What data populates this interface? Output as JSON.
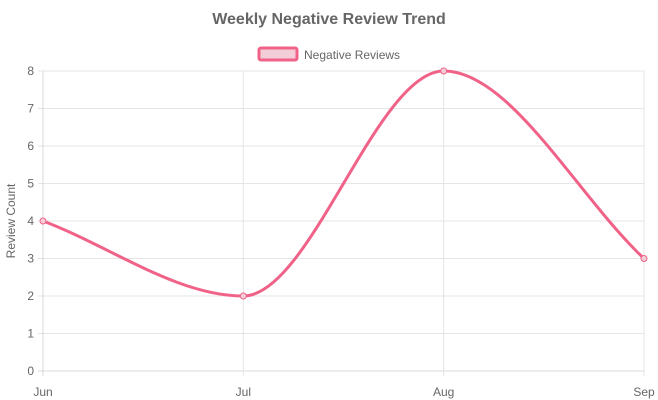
{
  "chart_data": {
    "type": "line",
    "title": "Weekly Negative Review Trend",
    "xlabel": "",
    "ylabel": "Review Count",
    "categories": [
      "Jun",
      "Jul",
      "Aug",
      "Sep"
    ],
    "series": [
      {
        "name": "Negative Reviews",
        "values": [
          4,
          2,
          8,
          3
        ],
        "color": "#f06288",
        "fill": "#f3cdd7"
      }
    ],
    "ylim": [
      0,
      8
    ],
    "yticks": [
      0,
      1,
      2,
      3,
      4,
      5,
      6,
      7,
      8
    ],
    "grid": true,
    "legend": "top-center"
  }
}
